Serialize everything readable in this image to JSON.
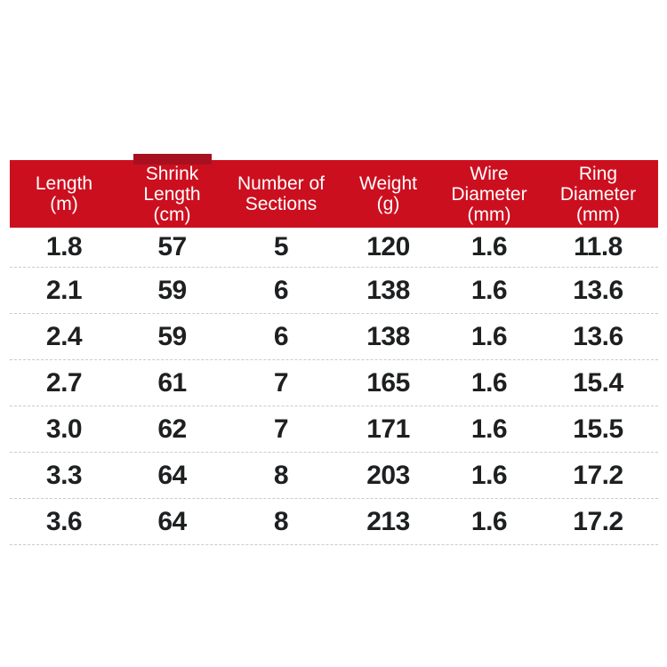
{
  "page": {
    "background_color": "#FFFFFF"
  },
  "spec_table": {
    "header": {
      "bg_color": "#CC0F1F",
      "accent_color": "#A8101F",
      "text_color": "#FFFFFF",
      "columns": [
        {
          "id": "length",
          "lines": [
            "Length",
            "(m)"
          ]
        },
        {
          "id": "shrink-length",
          "lines": [
            "Shrink",
            "Length",
            "(cm)"
          ]
        },
        {
          "id": "sections",
          "lines": [
            "Number of",
            "Sections"
          ]
        },
        {
          "id": "weight",
          "lines": [
            "Weight",
            "(g)"
          ]
        },
        {
          "id": "wire-diameter",
          "lines": [
            "Wire",
            "Diameter",
            "(mm)"
          ]
        },
        {
          "id": "ring-diameter",
          "lines": [
            "Ring",
            "Diameter",
            "(mm)"
          ]
        }
      ]
    },
    "rows": [
      [
        "1.8",
        "57",
        "5",
        "120",
        "1.6",
        "11.8"
      ],
      [
        "2.1",
        "59",
        "6",
        "138",
        "1.6",
        "13.6"
      ],
      [
        "2.4",
        "59",
        "6",
        "138",
        "1.6",
        "13.6"
      ],
      [
        "2.7",
        "61",
        "7",
        "165",
        "1.6",
        "15.4"
      ],
      [
        "3.0",
        "62",
        "7",
        "171",
        "1.6",
        "15.5"
      ],
      [
        "3.3",
        "64",
        "8",
        "203",
        "1.6",
        "17.2"
      ],
      [
        "3.6",
        "64",
        "8",
        "213",
        "1.6",
        "17.2"
      ]
    ],
    "body_text_color": "#1D1F20",
    "divider_color": "#C9CBCB"
  }
}
